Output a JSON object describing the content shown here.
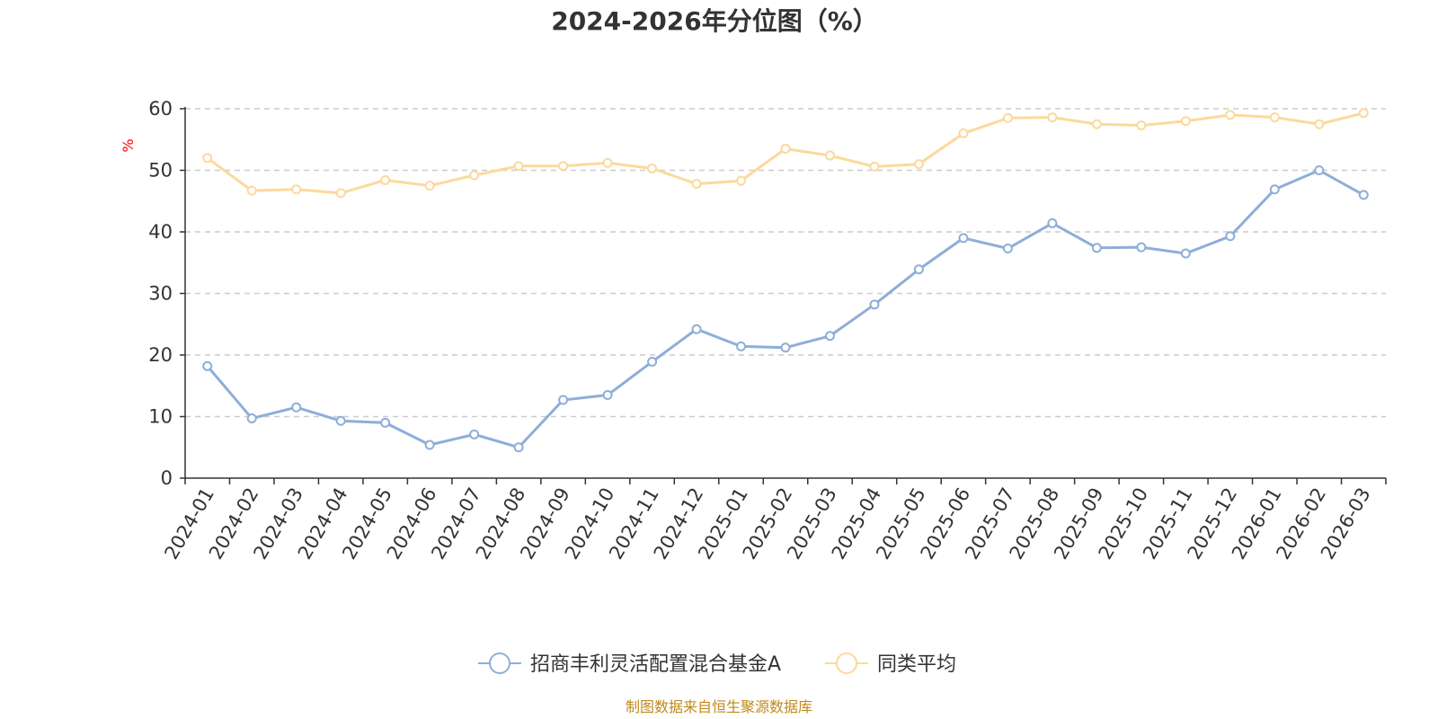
{
  "chart_data": {
    "type": "line",
    "title": "2024-2026年分位图（%）",
    "ylabel": "%",
    "xlabel": "",
    "ylim": [
      0,
      60
    ],
    "yticks": [
      0,
      10,
      20,
      30,
      40,
      50,
      60
    ],
    "grid": true,
    "legend_position": "bottom-center",
    "categories": [
      "2024-01",
      "2024-02",
      "2024-03",
      "2024-04",
      "2024-05",
      "2024-06",
      "2024-07",
      "2024-08",
      "2024-09",
      "2024-10",
      "2024-11",
      "2024-12",
      "2025-01",
      "2025-02",
      "2025-03",
      "2025-04",
      "2025-05",
      "2025-06",
      "2025-07",
      "2025-08",
      "2025-09",
      "2025-10",
      "2025-11",
      "2025-12",
      "2026-01",
      "2026-02",
      "2026-03"
    ],
    "series": [
      {
        "name": "招商丰利灵活配置混合基金A",
        "color": "#8eaed9",
        "values": [
          18.2,
          9.7,
          11.5,
          9.3,
          9.0,
          5.4,
          7.1,
          5.0,
          12.7,
          13.5,
          18.9,
          24.2,
          21.4,
          21.2,
          23.1,
          28.2,
          33.9,
          39.0,
          37.3,
          41.4,
          37.4,
          37.5,
          36.5,
          39.3,
          46.9,
          50.0,
          46.0
        ]
      },
      {
        "name": "同类平均",
        "color": "#fcd99b",
        "values": [
          52.0,
          46.7,
          46.9,
          46.3,
          48.4,
          47.5,
          49.2,
          50.7,
          50.7,
          51.2,
          50.3,
          47.8,
          48.3,
          53.5,
          52.4,
          50.6,
          51.0,
          56.0,
          58.5,
          58.6,
          57.5,
          57.3,
          58.0,
          59.0,
          58.6,
          57.5,
          59.3
        ]
      }
    ],
    "source": "制图数据来自恒生聚源数据库",
    "source_color": "#c08a1a",
    "unit_color": "#ff0000"
  }
}
